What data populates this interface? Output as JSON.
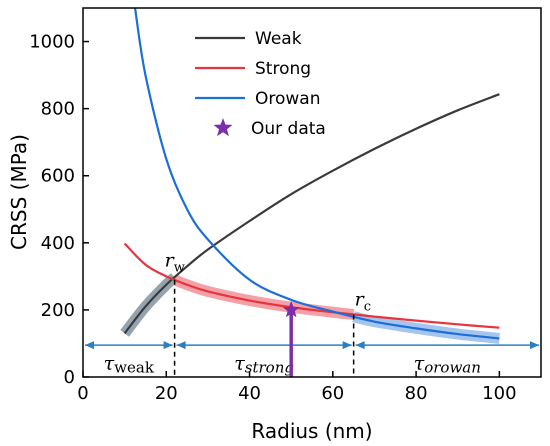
{
  "chart_data": {
    "type": "line",
    "xlabel": "Radius (nm)",
    "ylabel": "CRSS (MPa)",
    "xlim": [
      0,
      110
    ],
    "ylim": [
      0,
      1100
    ],
    "xticks": [
      0,
      20,
      40,
      60,
      80,
      100
    ],
    "yticks": [
      0,
      200,
      400,
      600,
      800,
      1000
    ],
    "legend_position": "top-center",
    "series": [
      {
        "name": "Weak",
        "color": "#3a3a3a",
        "x": [
          10,
          15,
          20,
          25,
          30,
          40,
          50,
          60,
          70,
          80,
          90,
          100
        ],
        "y": [
          130,
          210,
          275,
          330,
          380,
          465,
          545,
          615,
          680,
          740,
          795,
          843
        ]
      },
      {
        "name": "Strong",
        "color": "#e8343f",
        "x": [
          10,
          15,
          20,
          25,
          30,
          40,
          50,
          60,
          70,
          80,
          90,
          100
        ],
        "y": [
          398,
          335,
          300,
          275,
          255,
          228,
          208,
          193,
          180,
          168,
          157,
          147
        ]
      },
      {
        "name": "Orowan",
        "color": "#1a6fd8",
        "x": [
          12.5,
          15,
          20,
          25,
          30,
          40,
          50,
          60,
          70,
          80,
          90,
          100
        ],
        "y": [
          1100,
          900,
          650,
          500,
          410,
          290,
          230,
          195,
          165,
          145,
          128,
          115
        ]
      }
    ],
    "our_data": {
      "name": "Our data",
      "color": "#7b2fa8",
      "x": 50,
      "y": 200
    },
    "annotations": {
      "r_w": {
        "label": "r",
        "sub": "w",
        "x": 22,
        "y": 300
      },
      "r_c": {
        "label": "r",
        "sub": "c",
        "x": 65,
        "y": 190
      }
    },
    "regions": [
      {
        "label": "τ",
        "sub": "weak",
        "from": 0,
        "to": 22
      },
      {
        "label": "τ",
        "sub": "strong",
        "from": 22,
        "to": 65
      },
      {
        "label": "τ",
        "sub": "orowan",
        "from": 65,
        "to": 110
      }
    ]
  }
}
